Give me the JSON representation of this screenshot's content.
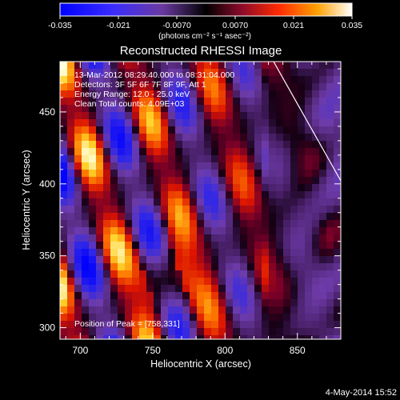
{
  "colorbar": {
    "ticks": [
      "-0.035",
      "-0.021",
      "-0.0070",
      "0.0070",
      "0.021",
      "0.035"
    ],
    "unit_label": "(photons cm⁻² s⁻¹ asec⁻²)",
    "range": [
      -0.035,
      0.035
    ]
  },
  "title": "Reconstructed RHESSI Image",
  "info": {
    "line1": "13-Mar-2012 08:29:40.000 to 08:31:04.000",
    "line2": "Detectors: 3F 5F 6F 7F 8F 9F, Att 1",
    "line3": "Energy Range: 12.0 - 25.0 keV",
    "line4": "Clean     Total counts: 4.09E+03"
  },
  "peak_label": "Position of Peak = [758,331]",
  "axes": {
    "xlabel": "Heliocentric X (arcsec)",
    "ylabel": "Heliocentric Y (arcsec)",
    "xticks": [
      "700",
      "750",
      "800",
      "850"
    ],
    "yticks": [
      "300",
      "350",
      "400",
      "450"
    ],
    "xlim": [
      686,
      880
    ],
    "ylim": [
      292,
      485
    ]
  },
  "footer_date": "4-May-2014 15:52"
}
